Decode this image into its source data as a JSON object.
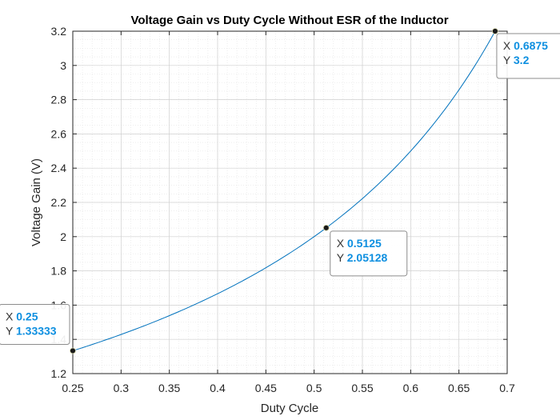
{
  "chart_data": {
    "type": "line",
    "title": "Voltage Gain vs Duty Cycle Without ESR of the Inductor",
    "xlabel": "Duty Cycle",
    "ylabel": "Voltage Gain (V)",
    "xlim": [
      0.25,
      0.7
    ],
    "ylim": [
      1.2,
      3.2
    ],
    "xticks": [
      "0.25",
      "0.3",
      "0.35",
      "0.4",
      "0.45",
      "0.5",
      "0.55",
      "0.6",
      "0.65",
      "0.7"
    ],
    "yticks": [
      "1.2",
      "1.4",
      "1.6",
      "1.8",
      "2",
      "2.2",
      "2.4",
      "2.6",
      "2.8",
      "3",
      "3.2"
    ],
    "grid": true,
    "minor_grid": true,
    "series": [
      {
        "name": "",
        "color": "#0072bd",
        "x": [
          0.25,
          0.275,
          0.3,
          0.325,
          0.35,
          0.375,
          0.4,
          0.425,
          0.45,
          0.475,
          0.5,
          0.5125,
          0.525,
          0.55,
          0.575,
          0.6,
          0.625,
          0.65,
          0.6875
        ],
        "y": [
          1.33333,
          1.37931,
          1.42857,
          1.48148,
          1.53846,
          1.6,
          1.66667,
          1.73913,
          1.81818,
          1.90476,
          2.0,
          2.05128,
          2.10526,
          2.22222,
          2.35294,
          2.5,
          2.66667,
          2.85714,
          3.2
        ]
      }
    ],
    "datatips": [
      {
        "x_label": "X",
        "y_label": "Y",
        "x": "0.25",
        "y": "1.33333"
      },
      {
        "x_label": "X",
        "y_label": "Y",
        "x": "0.5125",
        "y": "2.05128"
      },
      {
        "x_label": "X",
        "y_label": "Y",
        "x": "0.6875",
        "y": "3.2"
      }
    ]
  }
}
